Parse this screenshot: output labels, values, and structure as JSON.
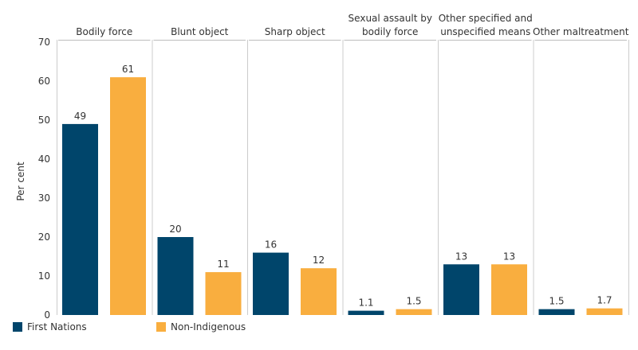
{
  "chart_data": {
    "type": "bar",
    "title": "",
    "xlabel": "",
    "ylabel": "Per cent",
    "ylim": [
      0,
      70
    ],
    "yticks": [
      0,
      10,
      20,
      30,
      40,
      50,
      60,
      70
    ],
    "grid": false,
    "legend": "bottom-left",
    "categories": [
      [
        "Bodily force"
      ],
      [
        "Blunt object"
      ],
      [
        "Sharp object"
      ],
      [
        "Sexual assault by",
        "bodily force"
      ],
      [
        "Other specified and",
        "unspecified means"
      ],
      [
        "Other maltreatment"
      ]
    ],
    "series": [
      {
        "name": "First Nations",
        "color": "#00456B",
        "values": [
          49,
          20,
          16,
          1.1,
          13,
          1.5
        ],
        "labels": [
          "49",
          "20",
          "16",
          "1.1",
          "13",
          "1.5"
        ]
      },
      {
        "name": "Non-Indigenous",
        "color": "#F9AE3F",
        "values": [
          61,
          11,
          12,
          1.5,
          13,
          1.7
        ],
        "labels": [
          "61",
          "11",
          "12",
          "1.5",
          "13",
          "1.7"
        ]
      }
    ]
  }
}
